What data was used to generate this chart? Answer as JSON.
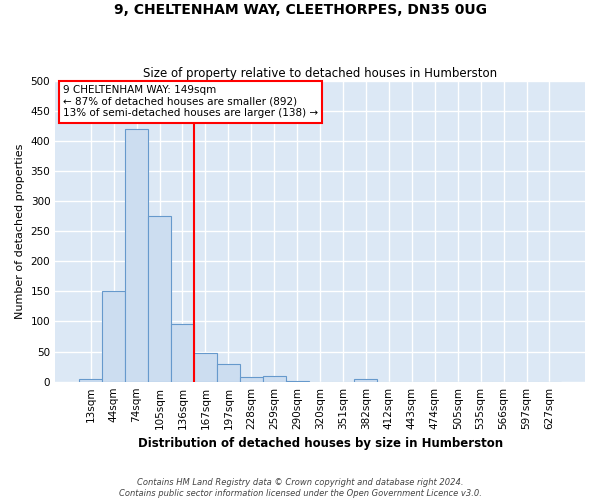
{
  "title": "9, CHELTENHAM WAY, CLEETHORPES, DN35 0UG",
  "subtitle": "Size of property relative to detached houses in Humberston",
  "xlabel": "Distribution of detached houses by size in Humberston",
  "ylabel": "Number of detached properties",
  "bar_color": "#ccddf0",
  "bar_edge_color": "#6699cc",
  "background_color": "#dce8f5",
  "grid_color": "#ffffff",
  "fig_background": "#ffffff",
  "categories": [
    "13sqm",
    "44sqm",
    "74sqm",
    "105sqm",
    "136sqm",
    "167sqm",
    "197sqm",
    "228sqm",
    "259sqm",
    "290sqm",
    "320sqm",
    "351sqm",
    "382sqm",
    "412sqm",
    "443sqm",
    "474sqm",
    "505sqm",
    "535sqm",
    "566sqm",
    "597sqm",
    "627sqm"
  ],
  "values": [
    5,
    150,
    420,
    275,
    95,
    48,
    30,
    8,
    10,
    1,
    0,
    0,
    5,
    0,
    0,
    0,
    0,
    0,
    0,
    0,
    0
  ],
  "ylim": [
    0,
    500
  ],
  "yticks": [
    0,
    50,
    100,
    150,
    200,
    250,
    300,
    350,
    400,
    450,
    500
  ],
  "red_line_x": 4.5,
  "annotation_text": "9 CHELTENHAM WAY: 149sqm\n← 87% of detached houses are smaller (892)\n13% of semi-detached houses are larger (138) →",
  "footer_line1": "Contains HM Land Registry data © Crown copyright and database right 2024.",
  "footer_line2": "Contains public sector information licensed under the Open Government Licence v3.0."
}
